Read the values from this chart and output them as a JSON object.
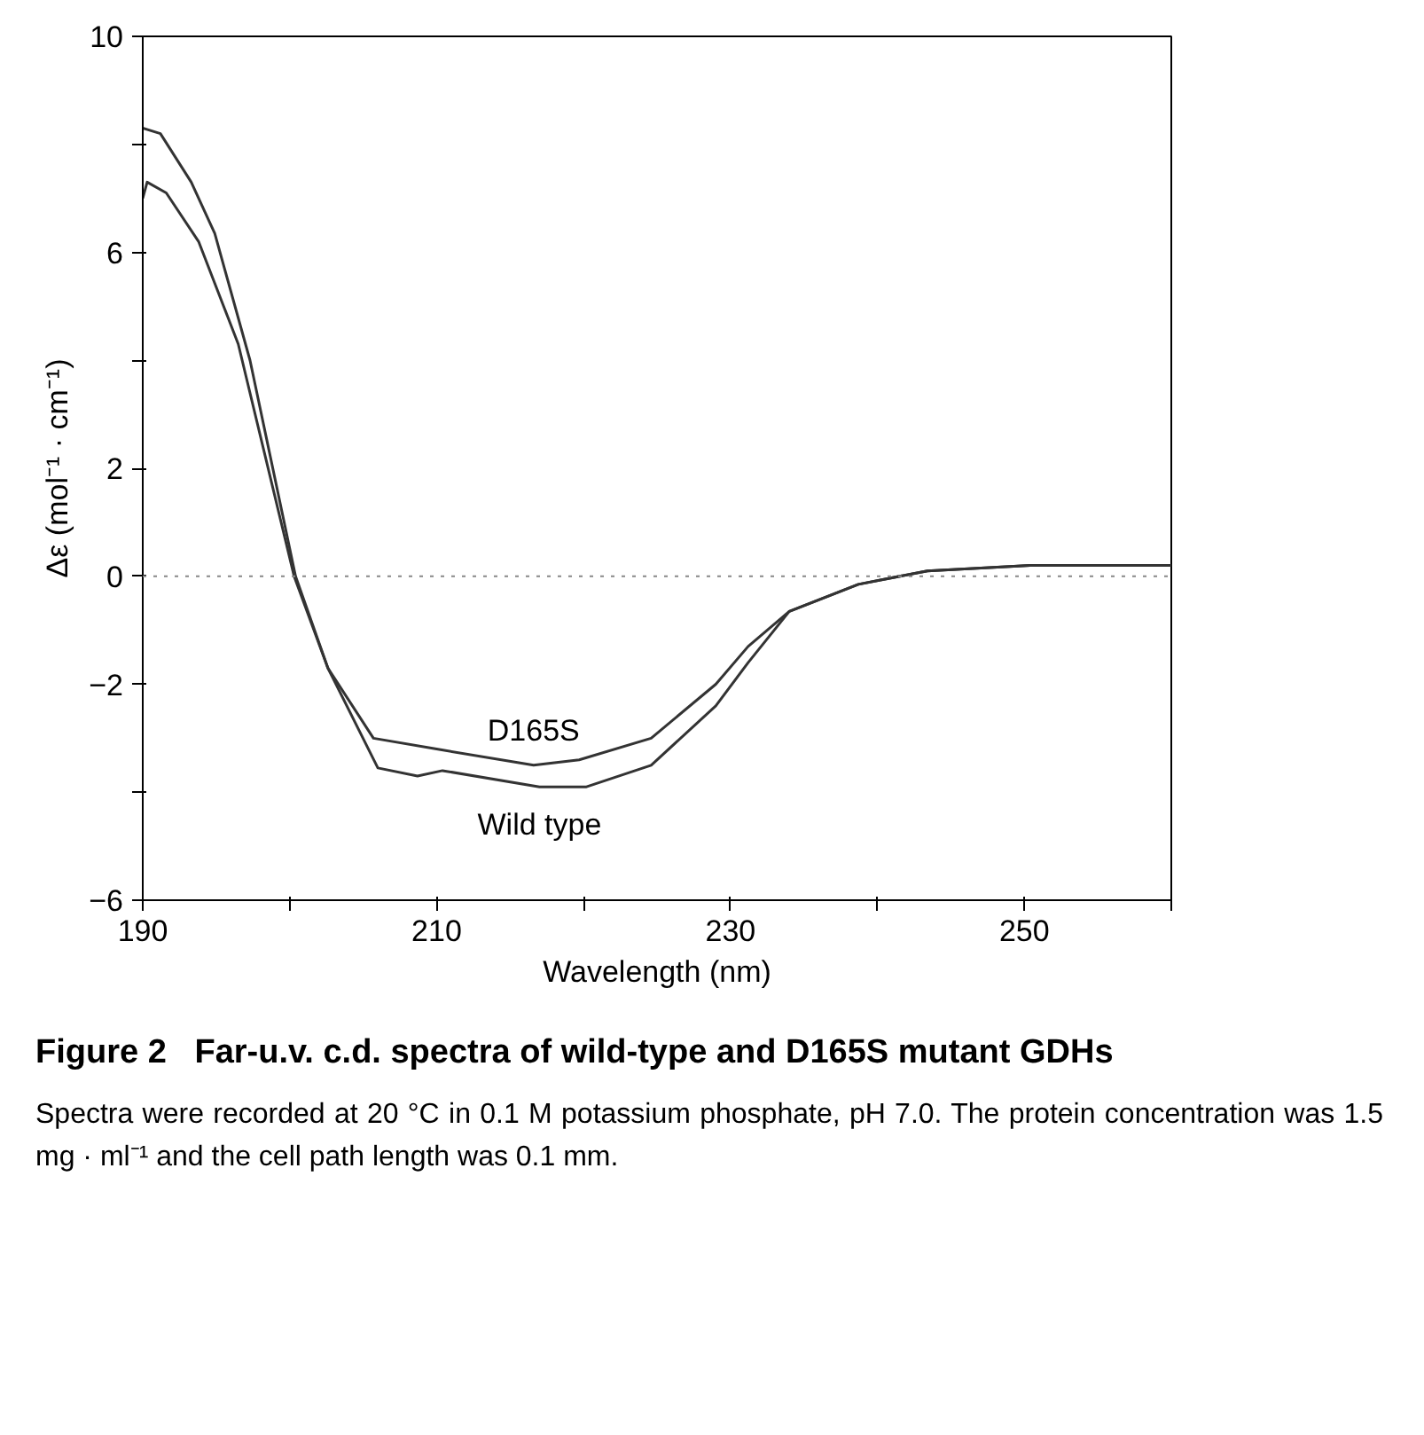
{
  "chart_data": {
    "type": "line",
    "title": "Figure 2   Far-u.v. c.d. spectra of wild-type and D165S mutant GDHs",
    "xlabel": "Wavelength (nm)",
    "ylabel": "Δε (mol⁻¹ · cm⁻¹)",
    "annotations": [
      "Spectra were recorded at 20 °C in 0.1 M potassium phosphate, pH 7.0. The protein concentration was 1.5 mg · ml⁻¹ and the cell path length was 0.1 mm."
    ],
    "series": [
      {
        "name": "D165S",
        "color": "#333333",
        "x": [
          190,
          190.3,
          191.6,
          193.8,
          196.5,
          200.3,
          202.6,
          205.7,
          210,
          216.6,
          219.7,
          224.6,
          229,
          231.2,
          234,
          238.7,
          243.4,
          250.4,
          260
        ],
        "values": [
          7.0,
          7.3,
          7.1,
          6.2,
          4.3,
          0,
          -1.7,
          -3.0,
          -3.2,
          -3.5,
          -3.4,
          -3.0,
          -2.0,
          -1.3,
          -0.65,
          -0.15,
          0.1,
          0.2,
          0.2
        ]
      },
      {
        "name": "Wild type",
        "color": "#333333",
        "x": [
          190,
          191.2,
          193.3,
          194.9,
          197.3,
          200.4,
          202.6,
          206,
          208.7,
          210.4,
          217,
          220.2,
          224.6,
          229,
          231.2,
          234,
          238.7,
          243.4,
          250.4,
          260
        ],
        "values": [
          8.3,
          8.2,
          7.3,
          6.35,
          4.0,
          0,
          -1.7,
          -3.55,
          -3.7,
          -3.6,
          -3.9,
          -3.9,
          -3.5,
          -2.4,
          -1.6,
          -0.65,
          -0.15,
          0.1,
          0.2,
          0.2
        ]
      }
    ],
    "xlim": [
      190,
      260
    ],
    "xticks": [
      190,
      {
        "value": 200,
        "label": null
      },
      210,
      {
        "value": 220,
        "label": null
      },
      230,
      {
        "value": 240,
        "label": null
      },
      250,
      {
        "value": 260,
        "label": null
      }
    ],
    "ylim": [
      -6,
      10
    ],
    "yticks": [
      -6,
      {
        "value": -4,
        "label": null
      },
      -2,
      0,
      2,
      {
        "value": 4,
        "label": null
      },
      6,
      {
        "value": 8,
        "label": null
      },
      10
    ],
    "ref_lines": [
      {
        "axis": "y",
        "value": 0,
        "label": null,
        "color": "#888888",
        "line_style": "dotted"
      }
    ],
    "grid": false,
    "marker": "none",
    "line_style": "solid"
  }
}
